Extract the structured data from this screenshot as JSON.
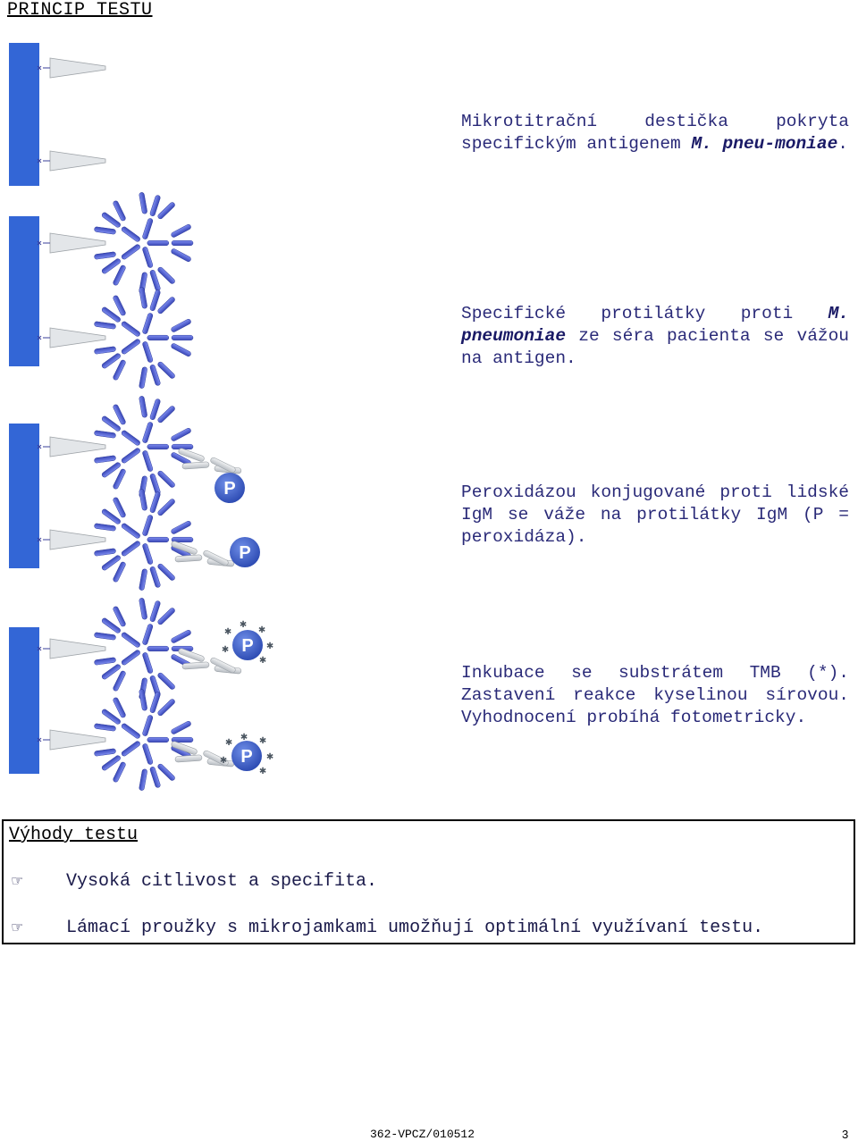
{
  "title": "PRINCIP TESTU",
  "steps": [
    {
      "pre": "Mikrotitrační destička pokryta specifickým antigenem ",
      "em": "M. pneu-moniae",
      "post": "."
    },
    {
      "pre": "Specifické protilátky proti ",
      "em": "M. pneumoniae",
      "post": " ze séra pacienta se vážou na antigen."
    },
    {
      "pre": "Peroxidázou konjugované proti lidské IgM se váže na protilátky IgM (P = peroxidáza).",
      "em": "",
      "post": ""
    },
    {
      "pre": "Inkubace se substrátem TMB (*). Zastavení reakce kyselinou sírovou. Vyhodnocení probíhá fotometricky.",
      "em": "",
      "post": ""
    }
  ],
  "diagram": {
    "peroxidase_label": "P",
    "substrate_symbol": "*",
    "colors": {
      "plate": "#3366d6",
      "antibody": "#4b5fd0",
      "antigen": "#d8dde2",
      "conjugate": "#d9dcde"
    }
  },
  "advantages": {
    "title": "Výhody testu",
    "bullet_icon": "pointing-hand-icon",
    "bullet_glyph": "☞",
    "items": [
      "Vysoká citlivost a specifita.",
      "Lámací proužky s mikrojamkami umožňují optimální využívaní testu."
    ]
  },
  "footer": {
    "code": "362-VPCZ/010512",
    "page": "3"
  }
}
